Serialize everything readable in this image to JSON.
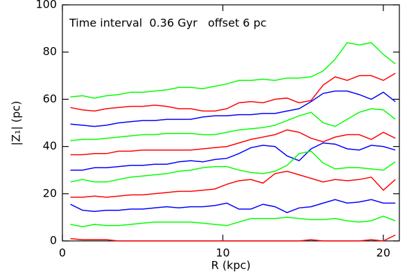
{
  "chart_data": {
    "type": "line",
    "annotation": "Time interval  0.36 Gyr   offset 6 pc",
    "x_label": "R (kpc)",
    "y_label": "|Z₁| (pc)",
    "xlim": [
      0,
      21
    ],
    "ylim": [
      0,
      100
    ],
    "xticks": [
      0,
      10,
      20
    ],
    "yticks": [
      0,
      20,
      40,
      60,
      80,
      100
    ],
    "x": [
      0.5,
      1.25,
      2,
      2.75,
      3.5,
      4.25,
      5,
      5.75,
      6.5,
      7.25,
      8,
      8.75,
      9.5,
      10.25,
      11,
      11.75,
      12.5,
      13.25,
      14,
      14.75,
      15.5,
      16.25,
      17,
      17.75,
      18.5,
      19.25,
      20,
      20.75
    ],
    "series": [
      {
        "color": "#00ff00",
        "values": [
          61,
          61.5,
          60.5,
          61.5,
          62,
          63,
          63,
          63.5,
          64,
          65,
          65,
          64.5,
          65.5,
          66.5,
          68,
          68,
          68.5,
          68,
          69,
          69,
          69.5,
          72,
          77,
          84,
          83,
          84,
          79,
          75
        ]
      },
      {
        "color": "#ff0000",
        "values": [
          56.5,
          55.5,
          55,
          56,
          56.5,
          57,
          57,
          57.5,
          57,
          56,
          56,
          55,
          55,
          56,
          58.5,
          59,
          58.5,
          60,
          60.5,
          58.5,
          59.5,
          66,
          69.5,
          68,
          70,
          70,
          68,
          71
        ]
      },
      {
        "color": "#0000ff",
        "values": [
          49.5,
          49,
          48.5,
          49,
          50,
          50.5,
          51,
          51,
          51.5,
          51.5,
          51.5,
          52.5,
          53,
          53,
          53.5,
          53.5,
          54,
          54,
          55,
          56,
          59,
          62.5,
          63.5,
          63.5,
          62,
          60,
          63,
          59
        ]
      },
      {
        "color": "#00ff00",
        "values": [
          42.5,
          43,
          43,
          43.5,
          44,
          44.5,
          45,
          45,
          45.5,
          45.5,
          45.5,
          45,
          45,
          46,
          47,
          47.5,
          48,
          49,
          51,
          53,
          54.5,
          50,
          48.5,
          51.5,
          54.5,
          56,
          55.5,
          51.5
        ]
      },
      {
        "color": "#ff0000",
        "values": [
          36.5,
          36.5,
          37,
          37,
          38,
          38,
          38.5,
          38.5,
          38.5,
          38.5,
          38.5,
          39,
          39.5,
          40,
          41.5,
          43,
          44,
          45,
          47,
          46,
          43.5,
          42,
          44,
          45,
          45,
          43,
          46,
          43.5
        ]
      },
      {
        "color": "#0000ff",
        "values": [
          30,
          30,
          31,
          31,
          31.5,
          32,
          32,
          32.5,
          32.5,
          33.5,
          34,
          33.5,
          34.5,
          35,
          37,
          39.5,
          40.5,
          40,
          36,
          34,
          39,
          41.5,
          41,
          39,
          38.5,
          40.5,
          40,
          38.5
        ]
      },
      {
        "color": "#00ff00",
        "values": [
          25,
          26,
          25,
          25,
          26,
          27,
          27.5,
          28,
          28.5,
          29.5,
          30,
          31,
          31.5,
          31.5,
          30,
          29,
          28.5,
          29.5,
          32,
          37,
          38,
          33,
          30.5,
          31,
          31,
          30.5,
          30,
          33.5
        ]
      },
      {
        "color": "#ff0000",
        "values": [
          18.5,
          18.5,
          19,
          18.5,
          19,
          19.5,
          19.5,
          20,
          20.5,
          21,
          21,
          21.5,
          22,
          24,
          25.5,
          26,
          24.5,
          28.5,
          29.5,
          28,
          26.5,
          25,
          26,
          25.5,
          26,
          27,
          21.5,
          26
        ]
      },
      {
        "color": "#0000ff",
        "values": [
          15.5,
          13,
          12.5,
          13,
          13,
          13.5,
          13.5,
          14,
          14.5,
          14,
          14.5,
          14.5,
          15,
          16,
          13.5,
          13.5,
          15.5,
          14.5,
          12,
          14,
          14.5,
          16,
          17.5,
          16,
          16.5,
          17.5,
          16,
          16
        ]
      },
      {
        "color": "#00ff00",
        "values": [
          7,
          6,
          7,
          6.5,
          6.5,
          7,
          7.5,
          8,
          8,
          8,
          8,
          7.5,
          7,
          6.5,
          8,
          9.5,
          9.5,
          9.5,
          10,
          9.5,
          9,
          9,
          9.5,
          8.5,
          8,
          8.5,
          10.5,
          8.5
        ]
      },
      {
        "color": "#ff0000",
        "values": [
          1,
          0.5,
          0.5,
          0.5,
          0,
          0,
          0,
          0,
          0,
          0,
          0,
          0,
          0,
          0,
          0,
          0,
          0,
          0,
          0,
          0,
          0.5,
          0,
          0,
          0,
          0,
          0.5,
          0,
          2.5
        ]
      }
    ]
  }
}
